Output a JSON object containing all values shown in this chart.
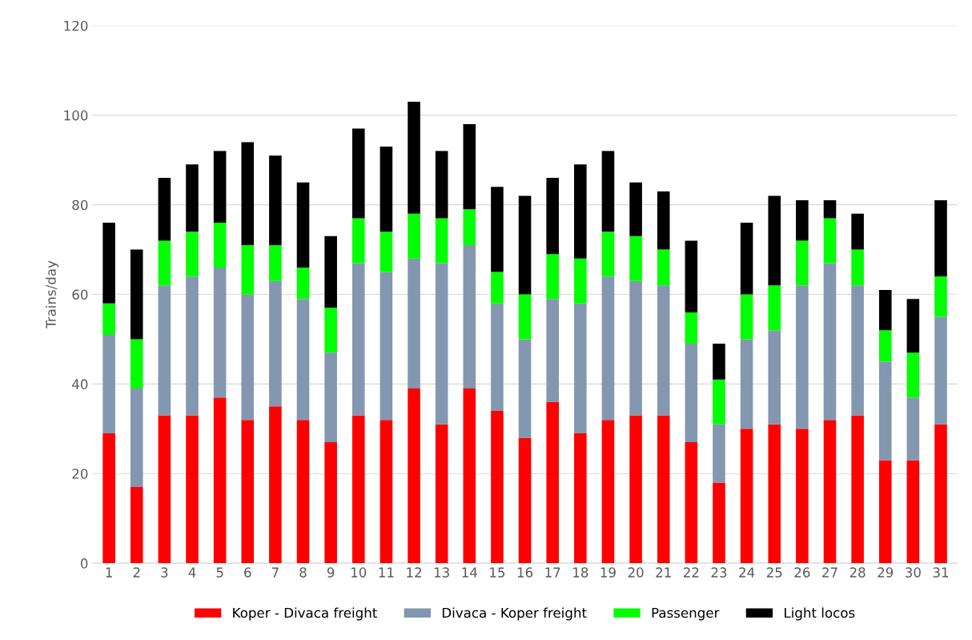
{
  "chart_data": {
    "type": "bar",
    "stacked": true,
    "ylabel": "Trains/day",
    "categories": [
      "1",
      "2",
      "3",
      "4",
      "5",
      "6",
      "7",
      "8",
      "9",
      "10",
      "11",
      "12",
      "13",
      "14",
      "15",
      "16",
      "17",
      "18",
      "19",
      "20",
      "21",
      "22",
      "23",
      "24",
      "25",
      "26",
      "27",
      "28",
      "29",
      "30",
      "31"
    ],
    "series": [
      {
        "name": "Koper - Divaca freight",
        "color": "#ff0000",
        "values": [
          29,
          17,
          33,
          33,
          37,
          32,
          35,
          32,
          27,
          33,
          32,
          39,
          31,
          39,
          34,
          28,
          36,
          29,
          32,
          33,
          33,
          27,
          18,
          30,
          31,
          30,
          32,
          33,
          23,
          23,
          31
        ]
      },
      {
        "name": "Divaca - Koper freight",
        "color": "#8497b0",
        "values": [
          22,
          22,
          29,
          31,
          29,
          28,
          28,
          27,
          20,
          34,
          33,
          29,
          36,
          32,
          24,
          22,
          23,
          29,
          32,
          30,
          29,
          22,
          13,
          20,
          21,
          32,
          35,
          29,
          22,
          14,
          24
        ]
      },
      {
        "name": "Passenger",
        "color": "#00ff00",
        "values": [
          7,
          11,
          10,
          10,
          10,
          11,
          8,
          7,
          10,
          10,
          9,
          10,
          10,
          8,
          7,
          10,
          10,
          10,
          10,
          10,
          8,
          7,
          10,
          10,
          10,
          10,
          10,
          8,
          7,
          10,
          9
        ]
      },
      {
        "name": "Light locos",
        "color": "#000000",
        "values": [
          18,
          20,
          14,
          15,
          16,
          23,
          20,
          19,
          16,
          20,
          19,
          25,
          15,
          19,
          19,
          22,
          17,
          21,
          18,
          12,
          13,
          16,
          8,
          16,
          20,
          9,
          4,
          8,
          9,
          12,
          17
        ]
      }
    ],
    "ylim": [
      0,
      120
    ],
    "yticks": [
      0,
      20,
      40,
      60,
      80,
      100,
      120
    ],
    "grid": "y",
    "legend": "bottom"
  }
}
